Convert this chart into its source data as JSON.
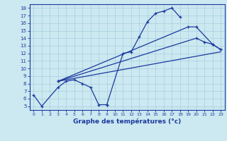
{
  "xlabel": "Graphe des températures (°c)",
  "background_color": "#cce8f0",
  "line_color": "#1a3a9e",
  "xlim": [
    -0.5,
    23.5
  ],
  "ylim": [
    4.5,
    18.5
  ],
  "xticks": [
    0,
    1,
    2,
    3,
    4,
    5,
    6,
    7,
    8,
    9,
    10,
    11,
    12,
    13,
    14,
    15,
    16,
    17,
    18,
    19,
    20,
    21,
    22,
    23
  ],
  "yticks": [
    5,
    6,
    7,
    8,
    9,
    10,
    11,
    12,
    13,
    14,
    15,
    16,
    17,
    18
  ],
  "seg1_x": [
    0,
    1,
    3,
    4,
    5,
    6,
    7,
    8,
    9
  ],
  "seg1_y": [
    6.5,
    5.0,
    7.5,
    8.3,
    8.5,
    8.0,
    7.5,
    5.2,
    5.2
  ],
  "seg2_x": [
    9,
    11,
    12,
    13,
    14,
    15,
    16,
    17,
    18
  ],
  "seg2_y": [
    5.2,
    12.0,
    12.2,
    14.2,
    16.2,
    17.3,
    17.6,
    18.0,
    16.8
  ],
  "trend1_x": [
    3,
    23
  ],
  "trend1_y": [
    8.3,
    12.2
  ],
  "trend2_x": [
    3,
    20,
    21,
    22,
    23
  ],
  "trend2_y": [
    8.3,
    14.0,
    13.5,
    13.2,
    12.5
  ],
  "trend3_x": [
    3,
    19,
    20,
    22,
    23
  ],
  "trend3_y": [
    8.3,
    15.5,
    15.5,
    13.2,
    12.5
  ]
}
